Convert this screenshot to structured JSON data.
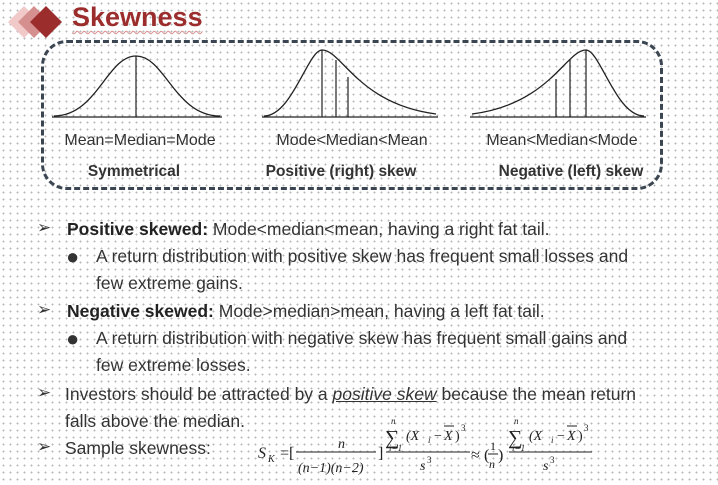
{
  "header": {
    "title": "Skewness"
  },
  "diagrams": [
    {
      "caption": "Mean=Median=Mode",
      "label": "Symmetrical"
    },
    {
      "caption": "Mode<Median<Mean",
      "label": "Positive (right) skew"
    },
    {
      "caption": "Mean<Median<Mode",
      "label": "Negative (left) skew"
    }
  ],
  "bullets": {
    "positive": {
      "term": "Positive skewed:",
      "text": " Mode<median<mean, having a right fat tail.",
      "sub_line1": "A return distribution with positive skew has frequent small losses and",
      "sub_line2": "few extreme gains."
    },
    "negative": {
      "term": "Negative skewed:",
      "text": " Mode>median>mean, having a left fat tail.",
      "sub_line1": "A return distribution with negative skew has frequent small gains and",
      "sub_line2": "few extreme losses."
    },
    "investors": {
      "before": "Investors should be attracted by a ",
      "emph": "positive skew",
      "after": " because the mean return",
      "line2": "falls above the median."
    },
    "sample": {
      "label": "Sample skewness:"
    }
  },
  "formula": {
    "sk": "S",
    "sk_sub": "K",
    "eq": "=[",
    "n_top": "n",
    "n_bottom": "(n−1)(n−2)",
    "close": "]",
    "sum_top": "n",
    "sum_bottom": "i=1",
    "sigma": "∑",
    "term": "(X",
    "term_i": "i",
    "minus": "−",
    "xbar": "X",
    "cube": "3",
    "s3": "s",
    "approx": "≈",
    "one": "1",
    "lp": "(",
    "rp": ")"
  }
}
